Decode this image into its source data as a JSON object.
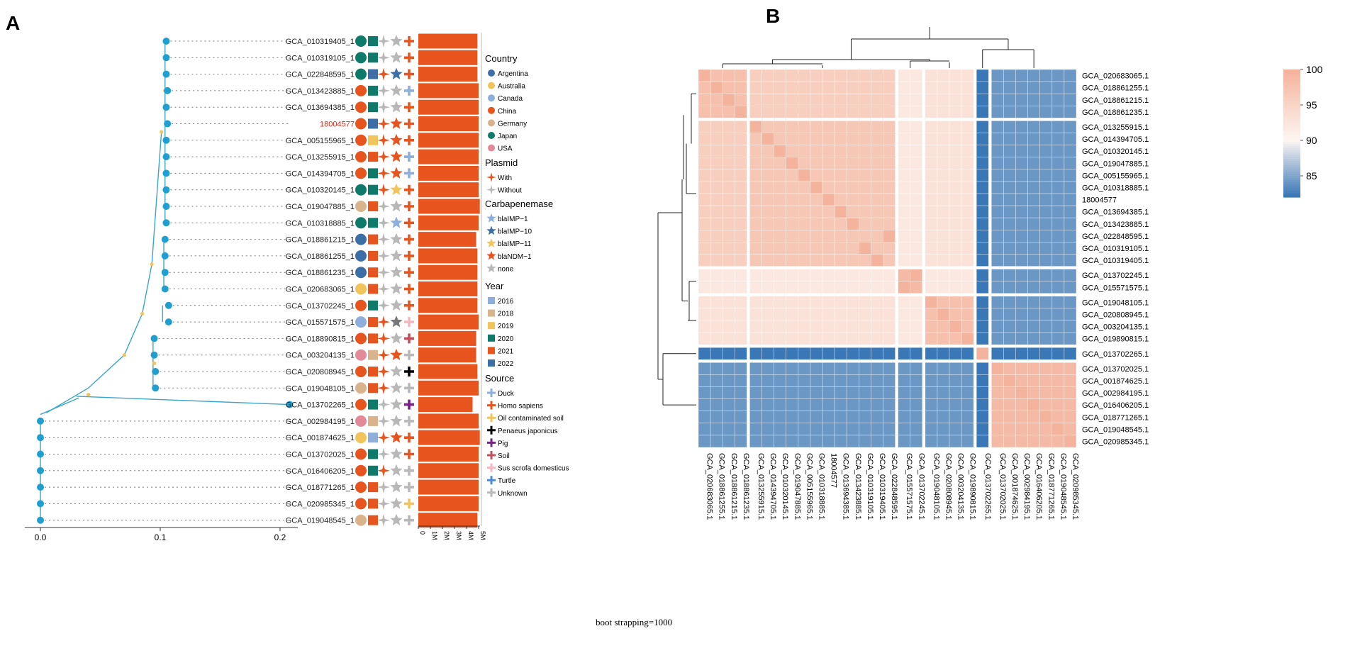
{
  "panel_a": {
    "label": "A",
    "strains": [
      {
        "name": "GCA_010319405_1",
        "country": "Japan",
        "year": "2020",
        "plasmid": "Without",
        "carbapenemase": "none",
        "source": "Homo sapiens",
        "size_m": 4.9
      },
      {
        "name": "GCA_010319105_1",
        "country": "Japan",
        "year": "2020",
        "plasmid": "Without",
        "carbapenemase": "none",
        "source": "Homo sapiens",
        "size_m": 4.9
      },
      {
        "name": "GCA_022848595_1",
        "country": "Japan",
        "year": "2022",
        "plasmid": "With",
        "carbapenemase": "blaIMP-10",
        "source": "Homo sapiens",
        "size_m": 4.9
      },
      {
        "name": "GCA_013423885_1",
        "country": "China",
        "year": "2020",
        "plasmid": "Without",
        "carbapenemase": "none",
        "source": "Duck",
        "size_m": 5.0
      },
      {
        "name": "GCA_013694385_1",
        "country": "China",
        "year": "2020",
        "plasmid": "Without",
        "carbapenemase": "none",
        "source": "Homo sapiens",
        "size_m": 5.0
      },
      {
        "name": "18004577",
        "country": "China",
        "year": "2022",
        "plasmid": "With",
        "carbapenemase": "blaNDM-1",
        "source": "Homo sapiens",
        "size_m": 5.0,
        "highlight": true
      },
      {
        "name": "GCA_005155965_1",
        "country": "China",
        "year": "2019",
        "plasmid": "With",
        "carbapenemase": "blaNDM-1",
        "source": "Homo sapiens",
        "size_m": 5.0
      },
      {
        "name": "GCA_013255915_1",
        "country": "China",
        "year": "2021",
        "plasmid": "With",
        "carbapenemase": "blaNDM-1",
        "source": "Duck",
        "size_m": 5.0
      },
      {
        "name": "GCA_014394705_1",
        "country": "China",
        "year": "2020",
        "plasmid": "With",
        "carbapenemase": "blaNDM-1",
        "source": "Duck",
        "size_m": 5.0
      },
      {
        "name": "GCA_010320145_1",
        "country": "Japan",
        "year": "2020",
        "plasmid": "With",
        "carbapenemase": "blaIMP-11",
        "source": "Homo sapiens",
        "size_m": 5.0
      },
      {
        "name": "GCA_019047885_1",
        "country": "Germany",
        "year": "2021",
        "plasmid": "Without",
        "carbapenemase": "none",
        "source": "Homo sapiens",
        "size_m": 5.1
      },
      {
        "name": "GCA_010318885_1",
        "country": "Japan",
        "year": "2020",
        "plasmid": "Without",
        "carbapenemase": "blaIMP-1",
        "source": "Homo sapiens",
        "size_m": 5.0
      },
      {
        "name": "GCA_018861215_1",
        "country": "Argentina",
        "year": "2021",
        "plasmid": "Without",
        "carbapenemase": "none",
        "source": "Homo sapiens",
        "size_m": 4.8
      },
      {
        "name": "GCA_018861255_1",
        "country": "Argentina",
        "year": "2021",
        "plasmid": "Without",
        "carbapenemase": "none",
        "source": "Homo sapiens",
        "size_m": 4.9
      },
      {
        "name": "GCA_018861235_1",
        "country": "Argentina",
        "year": "2021",
        "plasmid": "Without",
        "carbapenemase": "none",
        "source": "Homo sapiens",
        "size_m": 4.9
      },
      {
        "name": "GCA_020683065_1",
        "country": "Australia",
        "year": "2021",
        "plasmid": "Without",
        "carbapenemase": "none",
        "source": "Homo sapiens",
        "size_m": 4.9
      },
      {
        "name": "GCA_013702245_1",
        "country": "China",
        "year": "2020",
        "plasmid": "Without",
        "carbapenemase": "none",
        "source": "Homo sapiens",
        "size_m": 4.9
      },
      {
        "name": "GCA_015571575_1",
        "country": "Canada",
        "year": "2021",
        "plasmid": "With",
        "carbapenemase": "grey",
        "source": "Sus scrofa domesticus",
        "size_m": 5.0
      },
      {
        "name": "GCA_018890815_1",
        "country": "China",
        "year": "2021",
        "plasmid": "With",
        "carbapenemase": "none",
        "source": "Soil",
        "size_m": 4.8
      },
      {
        "name": "GCA_003204135_1",
        "country": "USA",
        "year": "2018",
        "plasmid": "With",
        "carbapenemase": "blaNDM-1",
        "source": "Unknown",
        "size_m": 4.8
      },
      {
        "name": "GCA_020808945_1",
        "country": "China",
        "year": "2021",
        "plasmid": "With",
        "carbapenemase": "none",
        "source": "Penaeus japonicus",
        "size_m": 4.9
      },
      {
        "name": "GCA_019048105_1",
        "country": "Germany",
        "year": "2021",
        "plasmid": "With",
        "carbapenemase": "none",
        "source": "Unknown",
        "size_m": 5.0
      },
      {
        "name": "GCA_013702265_1",
        "country": "China",
        "year": "2020",
        "plasmid": "Without",
        "carbapenemase": "none",
        "source": "Pig",
        "size_m": 4.5
      },
      {
        "name": "GCA_002984195_1",
        "country": "USA",
        "year": "2018",
        "plasmid": "Without",
        "carbapenemase": "none",
        "source": "Unknown",
        "size_m": 5.0
      },
      {
        "name": "GCA_001874625_1",
        "country": "Australia",
        "year": "2016",
        "plasmid": "With",
        "carbapenemase": "blaNDM-1",
        "source": "Homo sapiens",
        "size_m": 5.1
      },
      {
        "name": "GCA_013702025_1",
        "country": "China",
        "year": "2020",
        "plasmid": "Without",
        "carbapenemase": "none",
        "source": "Homo sapiens",
        "size_m": 5.0
      },
      {
        "name": "GCA_016406205_1",
        "country": "China",
        "year": "2020",
        "plasmid": "With",
        "carbapenemase": "none",
        "source": "Unknown",
        "size_m": 5.0
      },
      {
        "name": "GCA_018771265_1",
        "country": "China",
        "year": "2021",
        "plasmid": "Without",
        "carbapenemase": "none",
        "source": "Unknown",
        "size_m": 5.0
      },
      {
        "name": "GCA_020985345_1",
        "country": "China",
        "year": "2021",
        "plasmid": "Without",
        "carbapenemase": "none",
        "source": "Oil contaminated soil",
        "size_m": 5.0
      },
      {
        "name": "GCA_019048545_1",
        "country": "Germany",
        "year": "2021",
        "plasmid": "Without",
        "carbapenemase": "none",
        "source": "Unknown",
        "size_m": 4.9
      }
    ],
    "tree_axis": {
      "ticks": [
        "0.0",
        "0.1",
        "0.2"
      ],
      "tick_values": [
        0.0,
        0.1,
        0.2
      ]
    },
    "bar_axis": {
      "ticks": [
        "0",
        "1M",
        "2M",
        "3M",
        "4M",
        "5M"
      ],
      "max_m": 5
    },
    "legend": {
      "country": {
        "title": "Country",
        "items": [
          {
            "label": "Argentina",
            "color": "#3c6ea8"
          },
          {
            "label": "Australia",
            "color": "#f2c45c"
          },
          {
            "label": "Canada",
            "color": "#8eaedb"
          },
          {
            "label": "China",
            "color": "#e8541e"
          },
          {
            "label": "Germany",
            "color": "#d9b38c"
          },
          {
            "label": "Japan",
            "color": "#0e7a6a"
          },
          {
            "label": "USA",
            "color": "#e38a9a"
          }
        ]
      },
      "plasmid": {
        "title": "Plasmid",
        "items": [
          {
            "label": "With",
            "color": "#e8541e"
          },
          {
            "label": "Without",
            "color": "#b8b8b8"
          }
        ]
      },
      "carbapenemase": {
        "title": "Carbapenemase",
        "items": [
          {
            "label": "blaIMP−1",
            "key": "blaIMP-1",
            "color": "#8eaedb"
          },
          {
            "label": "blaIMP−10",
            "key": "blaIMP-10",
            "color": "#3c6ea8"
          },
          {
            "label": "blaIMP−11",
            "key": "blaIMP-11",
            "color": "#f2c45c"
          },
          {
            "label": "blaNDM−1",
            "key": "blaNDM-1",
            "color": "#e8541e"
          },
          {
            "label": "none",
            "key": "none",
            "color": "#b8b8b8"
          }
        ]
      },
      "year": {
        "title": "Year",
        "items": [
          {
            "label": "2016",
            "color": "#8eaedb"
          },
          {
            "label": "2018",
            "color": "#d9b38c"
          },
          {
            "label": "2019",
            "color": "#f2c45c"
          },
          {
            "label": "2020",
            "color": "#0e7a6a"
          },
          {
            "label": "2021",
            "color": "#e8541e"
          },
          {
            "label": "2022",
            "color": "#3c6ea8"
          }
        ]
      },
      "source": {
        "title": "Source",
        "items": [
          {
            "label": "Duck",
            "color": "#8eaedb"
          },
          {
            "label": "Homo sapiens",
            "color": "#e8541e"
          },
          {
            "label": "Oil contaminated soil",
            "color": "#f2c45c"
          },
          {
            "label": "Penaeus japonicus",
            "color": "#000000"
          },
          {
            "label": "Pig",
            "color": "#7b1d8a"
          },
          {
            "label": "Soil",
            "color": "#c0505c"
          },
          {
            "label": "Sus scrofa domesticus",
            "color": "#f4b8c0"
          },
          {
            "label": "Turtle",
            "color": "#4f8bd0"
          },
          {
            "label": "Unknown",
            "color": "#b8b8b8"
          }
        ]
      }
    },
    "colors": {
      "bar": "#e8541e",
      "branch": "#3aa6c8",
      "node": "#1f9fd0",
      "bootstrap": "#f2c45c",
      "highlight_label": "#d03020",
      "grey_star": "#777777"
    },
    "bootstrap_note": "boot strapping=1000"
  },
  "panel_b": {
    "label": "B",
    "row_labels": [
      "GCA_020683065.1",
      "GCA_018861255.1",
      "GCA_018861215.1",
      "GCA_018861235.1",
      "GCA_013255915.1",
      "GCA_014394705.1",
      "GCA_010320145.1",
      "GCA_019047885.1",
      "GCA_005155965.1",
      "GCA_010318885.1",
      "18004577",
      "GCA_013694385.1",
      "GCA_013423885.1",
      "GCA_022848595.1",
      "GCA_010319105.1",
      "GCA_010319405.1",
      "GCA_013702245.1",
      "GCA_015571575.1",
      "GCA_019048105.1",
      "GCA_020808945.1",
      "GCA_003204135.1",
      "GCA_019890815.1",
      "GCA_013702265.1",
      "GCA_013702025.1",
      "GCA_001874625.1",
      "GCA_002984195.1",
      "GCA_016406205.1",
      "GCA_018771265.1",
      "GCA_019048545.1",
      "GCA_020985345.1"
    ],
    "col_labels": [
      "GCA_020683065.1",
      "GCA_018861255.1",
      "GCA_018861215.1",
      "GCA_018861235.1",
      "GCA_013255915.1",
      "GCA_014394705.1",
      "GCA_010320145.1",
      "GCA_019047885.1",
      "GCA_005155965.1",
      "GCA_010318885.1",
      "18004577",
      "GCA_013694385.1",
      "GCA_013423885.1",
      "GCA_010319105.1",
      "GCA_010319405.1",
      "GCA_022848595.1",
      "GCA_015571575.1",
      "GCA_013702245.1",
      "GCA_019048105.1",
      "GCA_020808945.1",
      "GCA_003204135.1",
      "GCA_019890815.1",
      "GCA_013702265.1",
      "GCA_013702025.1",
      "GCA_001874625.1",
      "GCA_002984195.1",
      "GCA_016406205.1",
      "GCA_018771265.1",
      "GCA_019048545.1",
      "GCA_020985345.1"
    ],
    "row_groups": [
      4,
      12,
      2,
      4,
      1,
      7
    ],
    "col_groups": [
      4,
      12,
      2,
      4,
      1,
      7
    ],
    "block_values": [
      [
        98,
        96,
        92,
        93,
        82,
        84
      ],
      [
        96,
        97,
        92,
        93,
        82,
        84
      ],
      [
        92,
        92,
        99,
        92,
        82,
        84
      ],
      [
        93,
        93,
        92,
        98,
        82,
        84
      ],
      [
        82,
        82,
        82,
        82,
        100,
        82
      ],
      [
        84,
        84,
        84,
        84,
        82,
        99
      ]
    ],
    "scale": {
      "min": 82,
      "max": 100,
      "ticks": [
        "100",
        "95",
        "90",
        "85"
      ],
      "tick_values": [
        100,
        95,
        90,
        85
      ],
      "low_color": "#3a77b6",
      "mid_color": "#fdf6f2",
      "high_color": "#f4b39c"
    }
  }
}
